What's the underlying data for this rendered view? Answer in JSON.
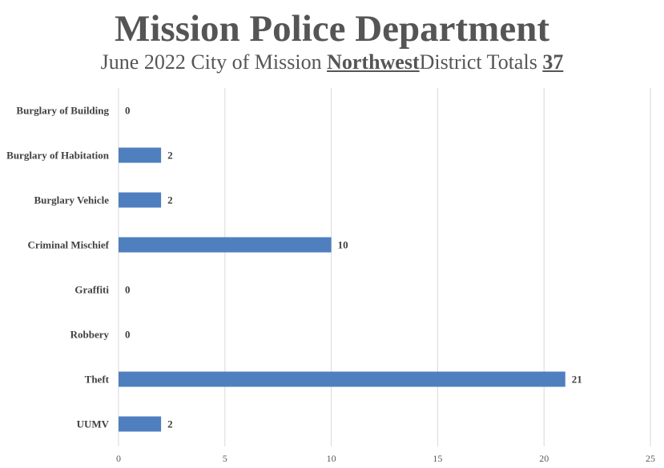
{
  "chart_data": {
    "type": "bar",
    "orientation": "horizontal",
    "title": "Mission Police Department",
    "subtitle": {
      "prefix": "June 2022 City of Mission",
      "district": "Northwest",
      "middle": "District Totals",
      "total": "37"
    },
    "categories": [
      "Burglary of Building",
      "Burglary of Habitation",
      "Burglary Vehicle",
      "Criminal Mischief",
      "Graffiti",
      "Robbery",
      "Theft",
      "UUMV"
    ],
    "values": [
      0,
      2,
      2,
      10,
      0,
      0,
      21,
      2
    ],
    "xlim": [
      0,
      25
    ],
    "xticks": [
      0,
      5,
      10,
      15,
      20,
      25
    ],
    "grid": true,
    "bar_color": "#4F7FBF",
    "data_labels": true
  }
}
